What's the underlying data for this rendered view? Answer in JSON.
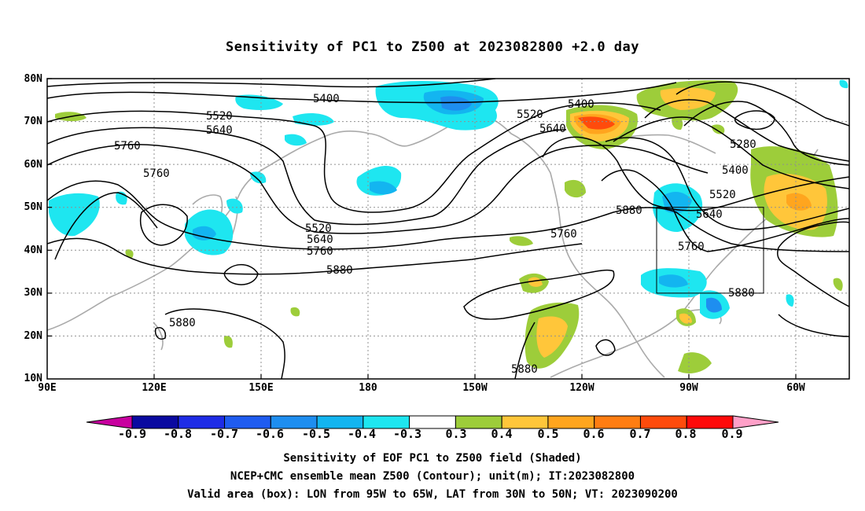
{
  "title": "Sensitivity of PC1 to Z500 at 2023082800 +2.0 day",
  "latitude_labels": [
    "80N",
    "70N",
    "60N",
    "50N",
    "40N",
    "30N",
    "20N",
    "10N"
  ],
  "longitude_labels": [
    "90E",
    "120E",
    "150E",
    "180",
    "150W",
    "120W",
    "90W",
    "60W"
  ],
  "contour_labels": [
    "5400",
    "5520",
    "5640",
    "5760",
    "5760",
    "5520",
    "5640",
    "5760",
    "5880",
    "5880",
    "5520",
    "5640",
    "5400",
    "5880",
    "5760",
    "5280",
    "5400",
    "5520",
    "5640",
    "5760",
    "5880",
    "5880"
  ],
  "colorbar": {
    "labels": [
      "-0.9",
      "-0.8",
      "-0.7",
      "-0.6",
      "-0.5",
      "-0.4",
      "-0.3",
      "0.3",
      "0.4",
      "0.5",
      "0.6",
      "0.7",
      "0.8",
      "0.9"
    ],
    "colors": [
      "#c8009f",
      "#0a0aa0",
      "#1e2ce6",
      "#1f5cf0",
      "#1e8ef0",
      "#13b5f0",
      "#1ee6f0",
      "#ffffff",
      "#9dcd3a",
      "#ffc63a",
      "#ffa51e",
      "#ff7d12",
      "#ff4b0c",
      "#ff0a0a",
      "#ffa0c8"
    ]
  },
  "valid_area": {
    "lon_from": "95W",
    "lon_to": "65W",
    "lat_from": "30N",
    "lat_to": "50N"
  },
  "captions": [
    "Sensitivity of EOF PC1 to Z500 field (Shaded)",
    "NCEP+CMC ensemble mean Z500 (Contour); unit(m); IT:2023082800",
    "Valid area (box): LON from 95W to 65W, LAT from 30N to 50N; VT: 2023090200"
  ]
}
